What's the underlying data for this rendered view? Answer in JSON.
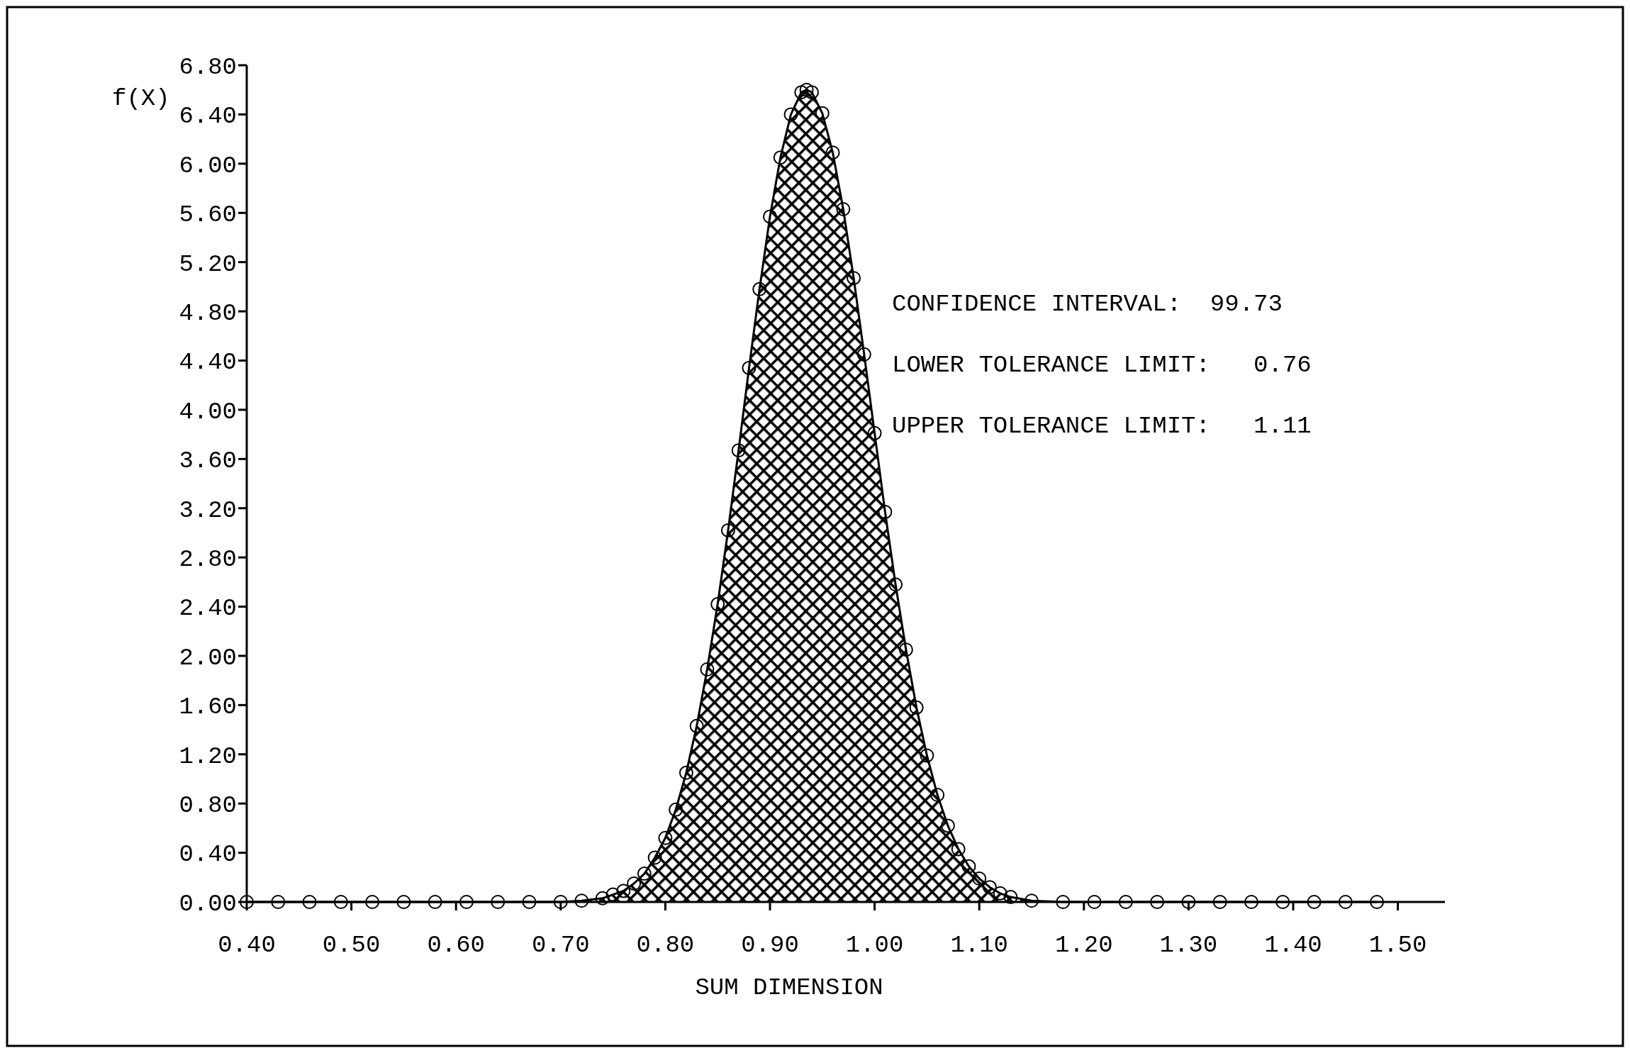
{
  "chart_data": {
    "type": "area",
    "xlabel": "SUM DIMENSION",
    "ylabel": "f(X)",
    "annotations": [
      "CONFIDENCE INTERVAL:  99.73",
      "LOWER TOLERANCE LIMIT:   0.76",
      "UPPER TOLERANCE LIMIT:   1.11"
    ],
    "x": [
      0.4,
      0.43,
      0.46,
      0.49,
      0.52,
      0.55,
      0.58,
      0.61,
      0.64,
      0.67,
      0.7,
      0.72,
      0.74,
      0.75,
      0.76,
      0.77,
      0.78,
      0.79,
      0.8,
      0.81,
      0.82,
      0.83,
      0.84,
      0.85,
      0.86,
      0.87,
      0.88,
      0.89,
      0.9,
      0.91,
      0.92,
      0.93,
      0.935,
      0.94,
      0.95,
      0.96,
      0.97,
      0.98,
      0.99,
      1.0,
      1.01,
      1.02,
      1.03,
      1.04,
      1.05,
      1.06,
      1.07,
      1.08,
      1.09,
      1.1,
      1.11,
      1.12,
      1.13,
      1.15,
      1.18,
      1.21,
      1.24,
      1.27,
      1.3,
      1.33,
      1.36,
      1.39,
      1.42,
      1.45,
      1.48
    ],
    "series": [
      {
        "color": "#000000",
        "values": [
          0,
          0,
          0,
          0,
          0,
          0,
          0,
          0,
          0,
          0,
          0,
          0.01,
          0.03,
          0.06,
          0.09,
          0.15,
          0.23,
          0.36,
          0.52,
          0.75,
          1.05,
          1.43,
          1.89,
          2.42,
          3.02,
          3.67,
          4.34,
          4.98,
          5.57,
          6.05,
          6.4,
          6.58,
          6.6,
          6.58,
          6.41,
          6.09,
          5.63,
          5.07,
          4.45,
          3.81,
          3.17,
          2.58,
          2.05,
          1.58,
          1.19,
          0.87,
          0.62,
          0.43,
          0.29,
          0.19,
          0.12,
          0.07,
          0.04,
          0.01,
          0,
          0,
          0,
          0,
          0,
          0,
          0,
          0,
          0,
          0,
          0
        ]
      }
    ],
    "marker": "circle",
    "xlim": [
      0.4,
      1.545
    ],
    "ylim": [
      0,
      6.8
    ],
    "xticks": [
      {
        "value": 0.4,
        "label": "0.40"
      },
      {
        "value": 0.5,
        "label": "0.50"
      },
      {
        "value": 0.6,
        "label": "0.60"
      },
      {
        "value": 0.7,
        "label": "0.70"
      },
      {
        "value": 0.8,
        "label": "0.80"
      },
      {
        "value": 0.9,
        "label": "0.90"
      },
      {
        "value": 1.0,
        "label": "1.00"
      },
      {
        "value": 1.1,
        "label": "1.10"
      },
      {
        "value": 1.2,
        "label": "1.20"
      },
      {
        "value": 1.3,
        "label": "1.30"
      },
      {
        "value": 1.4,
        "label": "1.40"
      },
      {
        "value": 1.5,
        "label": "1.50"
      }
    ],
    "yticks": [
      {
        "value": 0,
        "label": "0.00"
      },
      {
        "value": 0.4,
        "label": "0.40"
      },
      {
        "value": 0.8,
        "label": "0.80"
      },
      {
        "value": 1.2,
        "label": "1.20"
      },
      {
        "value": 1.6,
        "label": "1.60"
      },
      {
        "value": 2.0,
        "label": "2.00"
      },
      {
        "value": 2.4,
        "label": "2.40"
      },
      {
        "value": 2.8,
        "label": "2.80"
      },
      {
        "value": 3.2,
        "label": "3.20"
      },
      {
        "value": 3.6,
        "label": "3.60"
      },
      {
        "value": 4.0,
        "label": "4.00"
      },
      {
        "value": 4.4,
        "label": "4.40"
      },
      {
        "value": 4.8,
        "label": "4.80"
      },
      {
        "value": 5.2,
        "label": "5.20"
      },
      {
        "value": 5.6,
        "label": "5.60"
      },
      {
        "value": 6.0,
        "label": "6.00"
      },
      {
        "value": 6.4,
        "label": "6.40"
      },
      {
        "value": 6.8,
        "label": "6.80"
      }
    ]
  }
}
